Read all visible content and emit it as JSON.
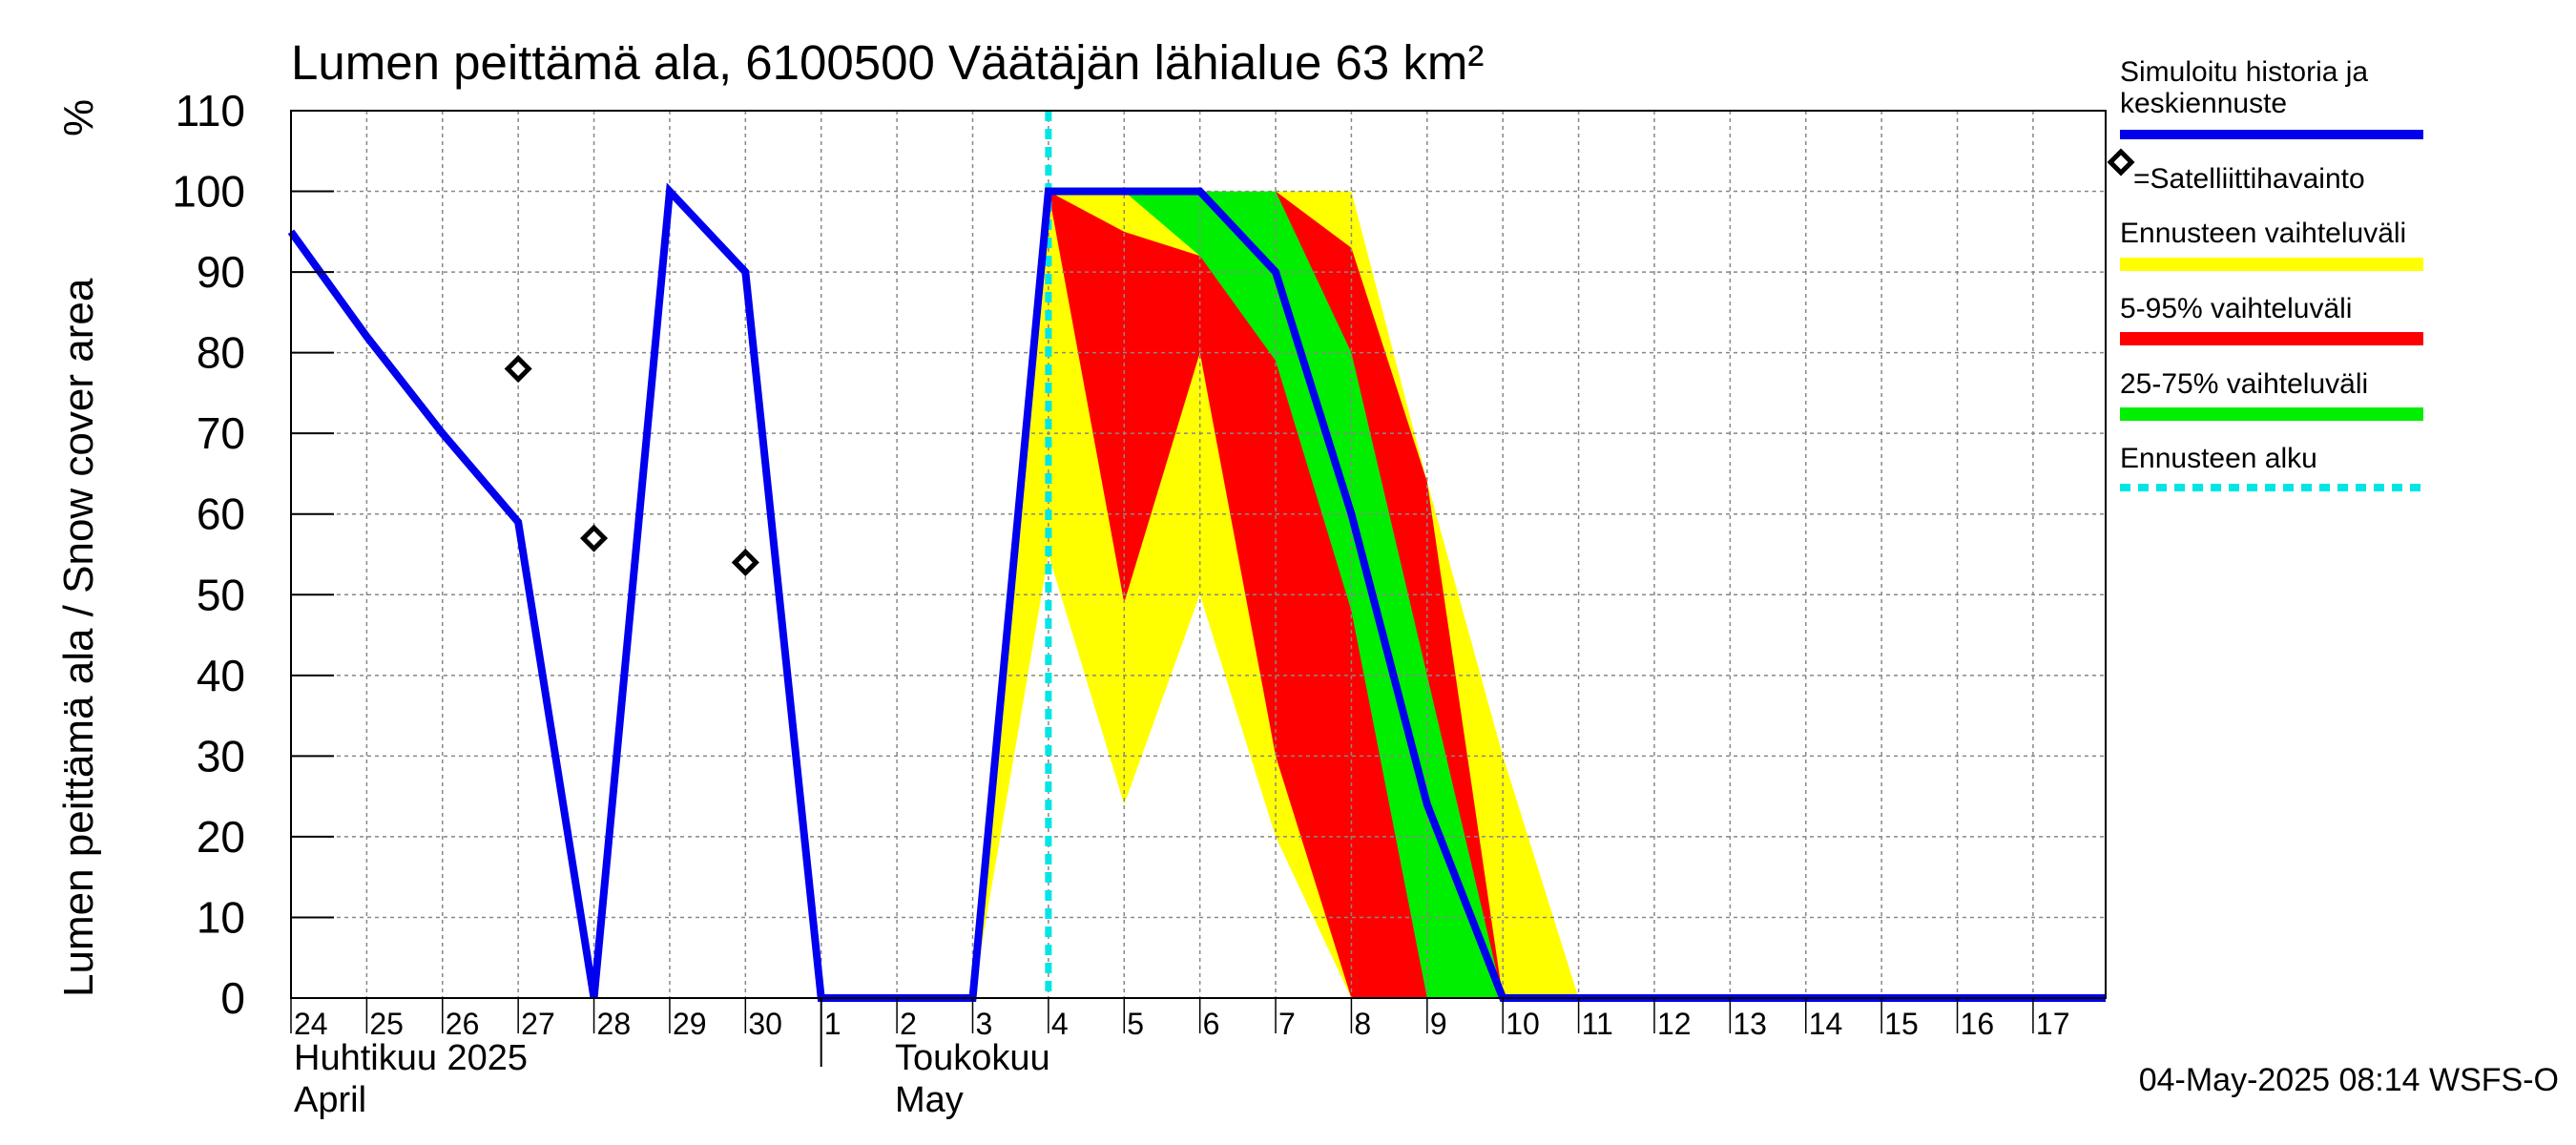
{
  "chart_data": {
    "type": "area",
    "title": "Lumen peittämä ala, 6100500 Väätäjän lähialue 63 km²",
    "ylabel": "Lumen peittämä ala / Snow cover area",
    "yunit": "%",
    "ylim": [
      0,
      110
    ],
    "yticks": [
      0,
      10,
      20,
      30,
      40,
      50,
      60,
      70,
      80,
      90,
      100,
      110
    ],
    "xlim": [
      "2025-04-24",
      "2025-05-17T23:00"
    ],
    "xtick_labels": [
      "24",
      "25",
      "26",
      "27",
      "28",
      "29",
      "30",
      "1",
      "2",
      "3",
      "4",
      "5",
      "6",
      "7",
      "8",
      "9",
      "10",
      "11",
      "12",
      "13",
      "14",
      "15",
      "16",
      "17"
    ],
    "month_labels": [
      {
        "fi": "Huhtikuu  2025",
        "en": "April"
      },
      {
        "fi": "Toukokuu",
        "en": "May"
      }
    ],
    "grid": true,
    "forecast_start": "2025-05-04",
    "series": [
      {
        "name": "Simuloitu historia ja keskiennuste",
        "color": "#0000ee",
        "x": [
          "2025-04-24",
          "2025-04-25",
          "2025-04-26",
          "2025-04-27",
          "2025-04-28",
          "2025-04-29",
          "2025-04-30",
          "2025-05-01",
          "2025-05-02",
          "2025-05-03",
          "2025-05-04",
          "2025-05-05",
          "2025-05-06",
          "2025-05-07",
          "2025-05-08",
          "2025-05-09",
          "2025-05-10",
          "2025-05-11",
          "2025-05-17T23:00"
        ],
        "y": [
          95,
          82,
          70,
          59,
          0,
          100,
          90,
          0,
          0,
          0,
          100,
          100,
          100,
          90,
          60,
          24,
          0,
          0,
          0
        ]
      },
      {
        "name": "=Satelliittihavainto",
        "type": "scatter",
        "x": [
          "2025-04-27",
          "2025-04-28",
          "2025-04-30"
        ],
        "y": [
          78,
          57,
          54
        ]
      },
      {
        "name": "Ennusteen vaihteluväli",
        "color": "#ffff00",
        "band": {
          "x": [
            "2025-05-03",
            "2025-05-04",
            "2025-05-05",
            "2025-05-06",
            "2025-05-07",
            "2025-05-08",
            "2025-05-09",
            "2025-05-10",
            "2025-05-11"
          ],
          "lower": [
            0,
            55,
            24,
            50,
            20,
            0,
            0,
            0,
            0
          ],
          "upper": [
            0,
            100,
            100,
            100,
            100,
            100,
            64,
            30,
            0
          ]
        }
      },
      {
        "name": "5-95% vaihteluväli",
        "color": "#ff0000",
        "band": {
          "x": [
            "2025-05-04",
            "2025-05-05",
            "2025-05-06",
            "2025-05-07",
            "2025-05-08",
            "2025-05-09",
            "2025-05-10"
          ],
          "lower": [
            100,
            49,
            80,
            30,
            0,
            0,
            0
          ],
          "upper": [
            100,
            95,
            92,
            100,
            93,
            64,
            0
          ]
        }
      },
      {
        "name": "25-75% vaihteluväli",
        "color": "#00ee00",
        "band": {
          "x": [
            "2025-05-04",
            "2025-05-05",
            "2025-05-06",
            "2025-05-07",
            "2025-05-08",
            "2025-05-09",
            "2025-05-10"
          ],
          "lower": [
            100,
            100,
            92,
            79,
            48,
            0,
            0
          ],
          "upper": [
            100,
            100,
            100,
            100,
            80,
            40,
            0
          ]
        }
      },
      {
        "name": "Ennusteen alku",
        "color": "#00e5e5",
        "type": "vline",
        "x": "2025-05-04"
      }
    ],
    "legend_placement": "right",
    "footer": "04-May-2025 08:14 WSFS-O"
  }
}
